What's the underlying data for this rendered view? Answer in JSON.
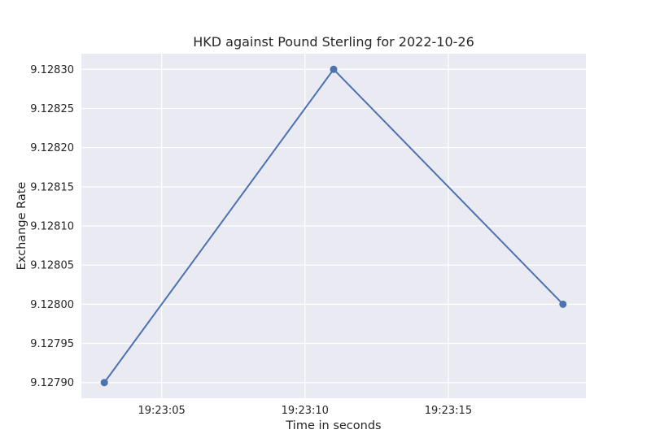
{
  "chart_data": {
    "type": "line",
    "title": "HKD against Pound Sterling for 2022-10-26",
    "xlabel": "Time in seconds",
    "ylabel": "Exchange Rate",
    "x_tick_labels": [
      "19:23:05",
      "19:23:10",
      "19:23:15"
    ],
    "y_tick_labels": [
      "9.12790",
      "9.12795",
      "9.12800",
      "9.12805",
      "9.12810",
      "9.12815",
      "9.12820",
      "9.12825",
      "9.12830"
    ],
    "x_ticks": [
      "19:23:05",
      "19:23:10",
      "19:23:15"
    ],
    "y_ticks": [
      9.1279,
      9.12795,
      9.128,
      9.12805,
      9.1281,
      9.12815,
      9.1282,
      9.12825,
      9.1283
    ],
    "xlim": [
      "19:23:02.2",
      "19:23:19.8"
    ],
    "ylim": [
      9.12788,
      9.12832
    ],
    "grid": true,
    "series": [
      {
        "color": "#4c72b0",
        "x": [
          "19:23:03",
          "19:23:11",
          "19:23:19"
        ],
        "y": [
          9.1279,
          9.1283,
          9.128
        ]
      }
    ],
    "colors": {
      "plot_background": "#eaeaf2",
      "grid": "#ffffff",
      "line": "#4c72b0"
    }
  }
}
